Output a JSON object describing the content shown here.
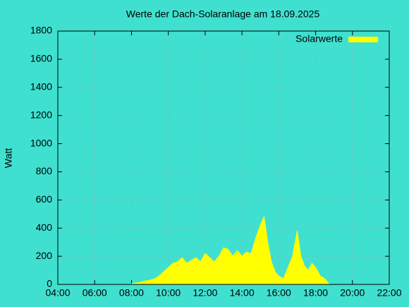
{
  "chart_data": {
    "type": "area",
    "title": "Werte der Dach-Solaranlage am 18.09.2025",
    "y_label": "Watt",
    "x": [
      8.0,
      8.25,
      8.5,
      8.75,
      9.0,
      9.25,
      9.5,
      9.75,
      10.0,
      10.25,
      10.5,
      10.75,
      11.0,
      11.25,
      11.5,
      11.75,
      12.0,
      12.25,
      12.5,
      12.75,
      13.0,
      13.25,
      13.5,
      13.75,
      14.0,
      14.25,
      14.5,
      14.75,
      15.0,
      15.2,
      15.4,
      15.6,
      15.8,
      16.0,
      16.25,
      16.5,
      16.75,
      17.0,
      17.2,
      17.4,
      17.6,
      17.8,
      18.0,
      18.25,
      18.5,
      18.75
    ],
    "series": [
      {
        "name": "Solarwerte",
        "color": "#ffff00",
        "values": [
          5,
          10,
          15,
          25,
          30,
          40,
          60,
          90,
          120,
          150,
          160,
          190,
          150,
          170,
          190,
          160,
          220,
          190,
          160,
          200,
          260,
          250,
          200,
          240,
          200,
          230,
          220,
          330,
          420,
          480,
          300,
          160,
          90,
          60,
          40,
          120,
          200,
          380,
          200,
          130,
          100,
          150,
          120,
          60,
          40,
          0
        ]
      }
    ],
    "xlim": [
      4,
      22
    ],
    "xticks": [
      {
        "value": 4,
        "label": "04:00"
      },
      {
        "value": 6,
        "label": "06:00"
      },
      {
        "value": 8,
        "label": "08:00"
      },
      {
        "value": 10,
        "label": "10:00"
      },
      {
        "value": 12,
        "label": "12:00"
      },
      {
        "value": 14,
        "label": "14:00"
      },
      {
        "value": 16,
        "label": "16:00"
      },
      {
        "value": 18,
        "label": "18:00"
      },
      {
        "value": 20,
        "label": "20:00"
      },
      {
        "value": 22,
        "label": "22:00"
      }
    ],
    "ylim": [
      0,
      1800
    ],
    "yticks": [
      0,
      200,
      400,
      600,
      800,
      1000,
      1200,
      1400,
      1600,
      1800
    ],
    "grid": true,
    "legend": "top-right"
  }
}
